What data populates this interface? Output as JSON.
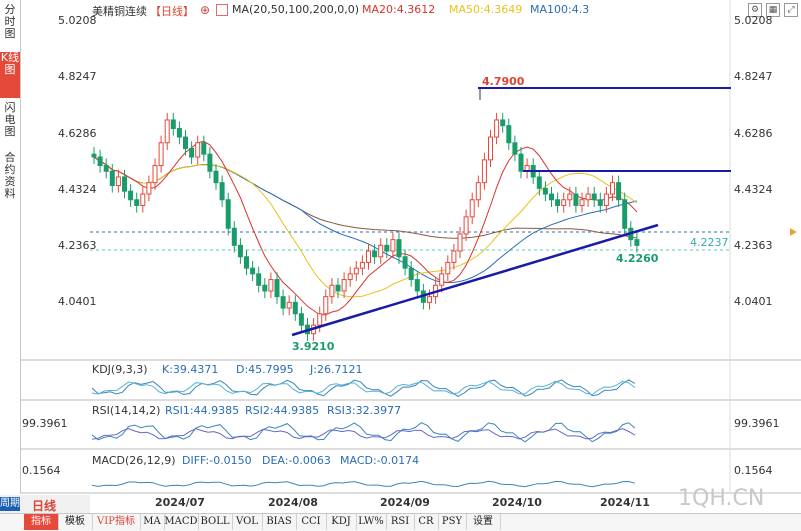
{
  "sidebar": {
    "tabs": [
      {
        "label": "分时图",
        "active": false
      },
      {
        "label": "K线图",
        "active": true
      },
      {
        "label": "闪电图",
        "active": false
      },
      {
        "label": "合约资料",
        "active": false
      }
    ]
  },
  "header": {
    "title": "美精铜连续",
    "period": "【日线】",
    "ma_params": "MA(20,50,100,200,0,0)",
    "ma20": "MA20:4.3612",
    "ma50": "MA50:4.3649",
    "ma100": "MA100:4.3",
    "icons": [
      "settings-icon",
      "grid-icon",
      "expand-icon"
    ]
  },
  "price_axis": {
    "labels": [
      "5.0208",
      "4.8247",
      "4.6286",
      "4.4324",
      "4.2363",
      "4.0401"
    ],
    "current_price": "4.2237",
    "high_label": "4.7900",
    "low_label": "3.9210",
    "recent_low_label": "4.2260"
  },
  "indicators": {
    "kdj": {
      "name": "KDJ(9,3,3)",
      "k": "K:39.4371",
      "d": "D:45.7995",
      "j": "J:26.7121"
    },
    "rsi": {
      "name": "RSI(14,14,2)",
      "rsi1": "RSI1:44.9385",
      "rsi2": "RSI2:44.9385",
      "rsi3": "RSI3:32.3977",
      "axis_label": "99.3961"
    },
    "macd": {
      "name": "MACD(26,12,9)",
      "diff": "DIFF:-0.0150",
      "dea": "DEA:-0.0063",
      "macd": "MACD:-0.0174",
      "axis_label": "0.1564"
    }
  },
  "time_axis": {
    "labels": [
      "2024/07",
      "2024/08",
      "2024/09",
      "2024/10",
      "2024/11"
    ]
  },
  "watermark": "1QH.CN",
  "period_bar": {
    "left_label": "周期",
    "current": "日线"
  },
  "bottom_tabs": [
    {
      "label": "指标",
      "active": true
    },
    {
      "label": "模板",
      "active": false
    },
    {
      "label": "VIP指标",
      "highlight": true
    },
    {
      "label": "MA"
    },
    {
      "label": "MACD"
    },
    {
      "label": "BOLL"
    },
    {
      "label": "VOL"
    },
    {
      "label": "BIAS"
    },
    {
      "label": "CCI"
    },
    {
      "label": "KDJ"
    },
    {
      "label": "LW%"
    },
    {
      "label": "RSI"
    },
    {
      "label": "CR"
    },
    {
      "label": "PSY"
    },
    {
      "label": "设置"
    }
  ],
  "colors": {
    "up": "#e5493a",
    "down": "#1a9c6a",
    "ma20": "#d9342b",
    "ma50": "#e8c21a",
    "ma100": "#2a6db5",
    "ma200": "#8b5a3c",
    "trend": "#1a1aa8",
    "accent": "#e5493a"
  }
}
